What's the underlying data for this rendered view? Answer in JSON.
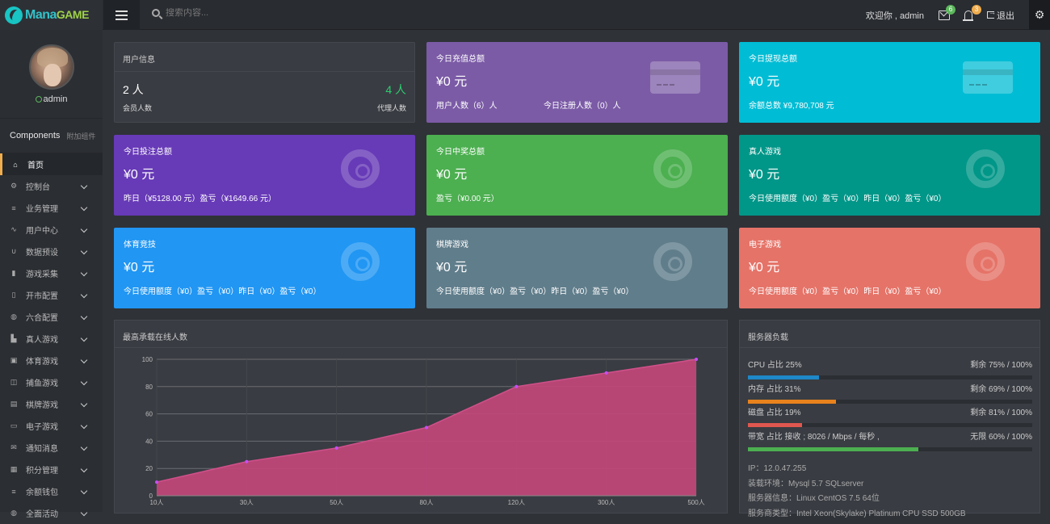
{
  "app": {
    "logo_main": "Mana",
    "logo_game": "GAME",
    "search_placeholder": "搜索内容..."
  },
  "header": {
    "welcome": "欢迎你 , admin",
    "mail_count": "6",
    "notify_count": "3",
    "logout": "退出"
  },
  "profile": {
    "username": "admin"
  },
  "sidebar": {
    "components_title": "Components",
    "components_sub": "附加组件",
    "items": [
      {
        "label": "首页",
        "icon": "home-icon",
        "glyph": "⌂"
      },
      {
        "label": "控制台",
        "icon": "gear-icon",
        "glyph": "⚙"
      },
      {
        "label": "业务管理",
        "icon": "list-icon",
        "glyph": "≡"
      },
      {
        "label": "用户中心",
        "icon": "pulse-icon",
        "glyph": "∿"
      },
      {
        "label": "数据预设",
        "icon": "magnet-icon",
        "glyph": "∪"
      },
      {
        "label": "游戏采集",
        "icon": "book-icon",
        "glyph": "▮"
      },
      {
        "label": "开市配置",
        "icon": "clipboard-icon",
        "glyph": "▯"
      },
      {
        "label": "六合配置",
        "icon": "globe-icon",
        "glyph": "◍"
      },
      {
        "label": "真人游戏",
        "icon": "bar-chart-icon",
        "glyph": "▙"
      },
      {
        "label": "体育游戏",
        "icon": "calendar-icon",
        "glyph": "▣"
      },
      {
        "label": "捕鱼游戏",
        "icon": "layout-icon",
        "glyph": "◫"
      },
      {
        "label": "棋牌游戏",
        "icon": "file-icon",
        "glyph": "▤"
      },
      {
        "label": "电子游戏",
        "icon": "credit-card-icon",
        "glyph": "▭"
      },
      {
        "label": "通知消息",
        "icon": "envelope-icon",
        "glyph": "✉"
      },
      {
        "label": "积分管理",
        "icon": "chart-icon",
        "glyph": "▦"
      },
      {
        "label": "余额钱包",
        "icon": "list-icon",
        "glyph": "≡"
      },
      {
        "label": "全面活动",
        "icon": "globe-icon",
        "glyph": "◍"
      }
    ]
  },
  "user_info": {
    "title": "用户信息",
    "member_count": "2 人",
    "member_label": "会员人数",
    "agent_count": "4 人",
    "agent_label": "代理人数"
  },
  "cards": [
    {
      "title": "今日充值总额",
      "value": "¥0 元",
      "sub": "用户人数（6）人",
      "sub2": "今日注册人数（0）人",
      "color": "#7b5ba6",
      "icon": "credit-card-icon"
    },
    {
      "title": "今日提现总额",
      "value": "¥0 元",
      "sub": "余额总数 ¥9,780,708 元",
      "sub2": "",
      "color": "#00bcd4",
      "icon": "credit-card-icon"
    },
    {
      "title": "今日投注总额",
      "value": "¥0 元",
      "sub": "昨日（¥5128.00 元）盈亏（¥1649.66 元）",
      "sub2": "",
      "color": "#673ab7",
      "icon": "lifebuoy-icon"
    },
    {
      "title": "今日中奖总额",
      "value": "¥0 元",
      "sub": "盈亏（¥0.00 元）",
      "sub2": "",
      "color": "#4caf50",
      "icon": "lifebuoy-icon"
    },
    {
      "title": "真人游戏",
      "value": "¥0 元",
      "sub": "今日使用额度（¥0）盈亏（¥0）昨日（¥0）盈亏（¥0）",
      "sub2": "",
      "color": "#009688",
      "icon": "lifebuoy-icon"
    },
    {
      "title": "体育竞技",
      "value": "¥0 元",
      "sub": "今日使用额度（¥0）盈亏（¥0）昨日（¥0）盈亏（¥0）",
      "sub2": "",
      "color": "#2196f3",
      "icon": "lifebuoy-icon"
    },
    {
      "title": "棋牌游戏",
      "value": "¥0 元",
      "sub": "今日使用额度（¥0）盈亏（¥0）昨日（¥0）盈亏（¥0）",
      "sub2": "",
      "color": "#607d8b",
      "icon": "lifebuoy-icon"
    },
    {
      "title": "电子游戏",
      "value": "¥0 元",
      "sub": "今日使用额度（¥0）盈亏（¥0）昨日（¥0）盈亏（¥0）",
      "sub2": "",
      "color": "#e57368",
      "icon": "lifebuoy-icon"
    }
  ],
  "chart_panel": {
    "title": "最高承载在线人数"
  },
  "chart_data": {
    "type": "area",
    "title": "最高承载在线人数",
    "categories": [
      "10人",
      "30人",
      "50人",
      "80人",
      "120人",
      "300人",
      "500人"
    ],
    "values": [
      10,
      25,
      35,
      50,
      80,
      90,
      100
    ],
    "yticks": [
      "0",
      "20",
      "40",
      "60",
      "80",
      "100"
    ],
    "ylim": [
      0,
      100
    ],
    "grid": true,
    "fill_color": "#c2487a",
    "line_color": "#d0508a",
    "point_color": "#c64dff"
  },
  "server": {
    "title": "服务器负载",
    "rows": [
      {
        "left": "CPU 占比 25%",
        "right": "剩余 75% / 100%",
        "percent": 25,
        "color": "#1e88c8"
      },
      {
        "left": "内存 占比 31%",
        "right": "剩余 69% / 100%",
        "percent": 31,
        "color": "#e8821c"
      },
      {
        "left": "磁盘 占比 19%",
        "right": "剩余 81% / 100%",
        "percent": 19,
        "color": "#e0574f"
      },
      {
        "left": "带宽 占比 接收 ; 8026 / Mbps / 每秒 ,",
        "right": "无限 60% / 100%",
        "percent": 60,
        "color": "#4caf50"
      }
    ],
    "info": [
      "IP：12.0.47.255",
      "装载环境：Mysql 5.7 SQLserver",
      "服务器信息：Linux CentOS 7.5 64位",
      "服务商类型：Intel Xeon(Skylake) Platinum CPU SSD 500GB"
    ]
  }
}
